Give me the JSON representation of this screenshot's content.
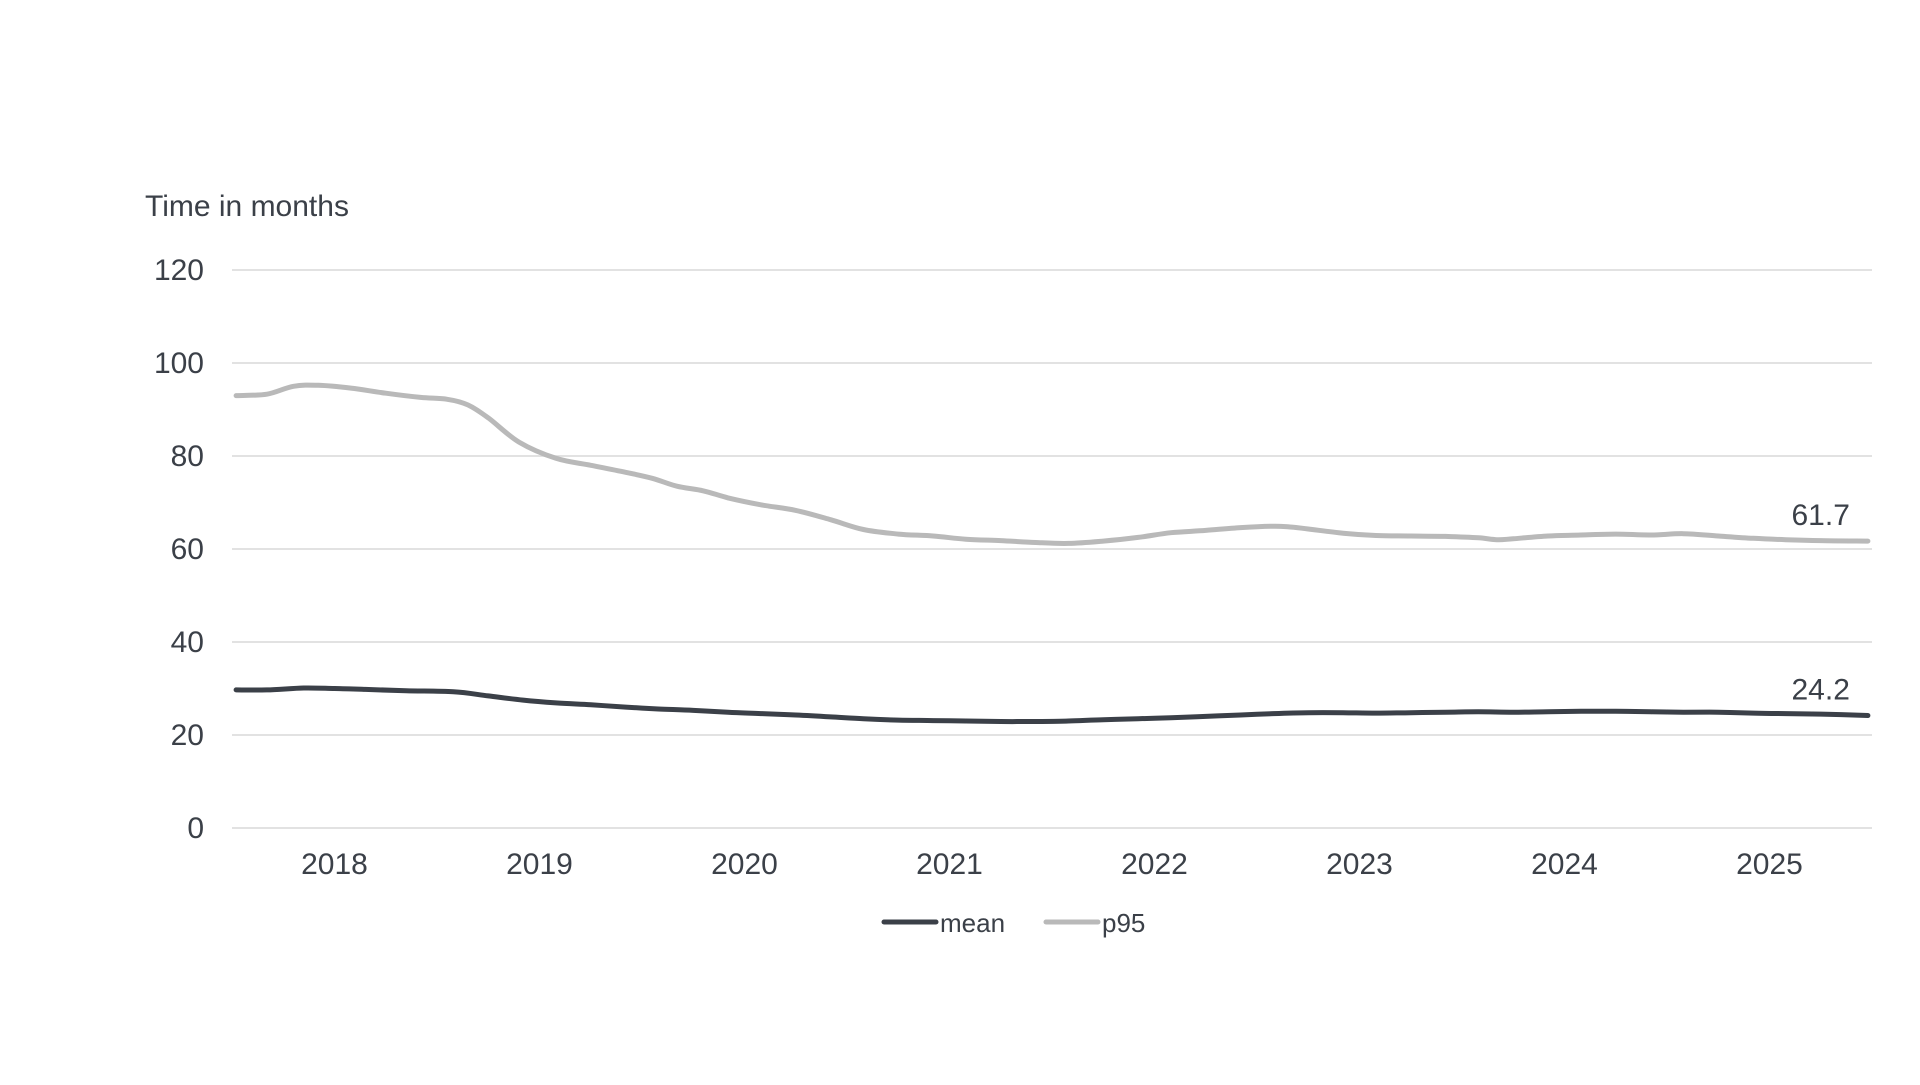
{
  "chart_data": {
    "type": "line",
    "title": "",
    "ylabel": "Time in months",
    "xlabel": "",
    "ylim": [
      0,
      120
    ],
    "yticks": [
      0,
      20,
      40,
      60,
      80,
      100,
      120
    ],
    "xlim": [
      2017.5,
      2025.5
    ],
    "xticks": [
      {
        "label": "2018",
        "value": 2018
      },
      {
        "label": "2019",
        "value": 2019
      },
      {
        "label": "2020",
        "value": 2020
      },
      {
        "label": "2021",
        "value": 2021
      },
      {
        "label": "2022",
        "value": 2022
      },
      {
        "label": "2023",
        "value": 2023
      },
      {
        "label": "2024",
        "value": 2024
      },
      {
        "label": "2025",
        "value": 2025
      }
    ],
    "grid": true,
    "legend": "bottom-center",
    "series": [
      {
        "name": "mean",
        "color": "#3b4048",
        "end_label": "24.2",
        "points": [
          [
            2017.52,
            29.7
          ],
          [
            2017.67,
            29.7
          ],
          [
            2017.85,
            30.1
          ],
          [
            2018.0,
            30.0
          ],
          [
            2018.15,
            29.8
          ],
          [
            2018.35,
            29.5
          ],
          [
            2018.58,
            29.3
          ],
          [
            2018.75,
            28.4
          ],
          [
            2018.92,
            27.5
          ],
          [
            2019.08,
            26.9
          ],
          [
            2019.25,
            26.5
          ],
          [
            2019.42,
            26.0
          ],
          [
            2019.58,
            25.6
          ],
          [
            2019.75,
            25.3
          ],
          [
            2019.92,
            24.9
          ],
          [
            2020.08,
            24.6
          ],
          [
            2020.25,
            24.3
          ],
          [
            2020.42,
            23.9
          ],
          [
            2020.58,
            23.5
          ],
          [
            2020.75,
            23.2
          ],
          [
            2020.92,
            23.1
          ],
          [
            2021.08,
            23.0
          ],
          [
            2021.25,
            22.9
          ],
          [
            2021.42,
            22.9
          ],
          [
            2021.58,
            23.0
          ],
          [
            2021.75,
            23.3
          ],
          [
            2021.92,
            23.5
          ],
          [
            2022.08,
            23.7
          ],
          [
            2022.25,
            24.0
          ],
          [
            2022.42,
            24.3
          ],
          [
            2022.58,
            24.6
          ],
          [
            2022.75,
            24.8
          ],
          [
            2022.92,
            24.8
          ],
          [
            2023.08,
            24.7
          ],
          [
            2023.25,
            24.8
          ],
          [
            2023.42,
            24.9
          ],
          [
            2023.58,
            25.0
          ],
          [
            2023.75,
            24.9
          ],
          [
            2023.92,
            25.0
          ],
          [
            2024.08,
            25.1
          ],
          [
            2024.25,
            25.1
          ],
          [
            2024.42,
            25.0
          ],
          [
            2024.58,
            24.9
          ],
          [
            2024.75,
            24.9
          ],
          [
            2024.92,
            24.7
          ],
          [
            2025.08,
            24.6
          ],
          [
            2025.25,
            24.5
          ],
          [
            2025.48,
            24.2
          ]
        ]
      },
      {
        "name": "p95",
        "color": "#b9b9b9",
        "end_label": "61.7",
        "points": [
          [
            2017.52,
            93.0
          ],
          [
            2017.67,
            93.3
          ],
          [
            2017.8,
            95.0
          ],
          [
            2017.92,
            95.2
          ],
          [
            2018.08,
            94.6
          ],
          [
            2018.25,
            93.5
          ],
          [
            2018.42,
            92.6
          ],
          [
            2018.55,
            92.2
          ],
          [
            2018.65,
            91.0
          ],
          [
            2018.75,
            88.2
          ],
          [
            2018.9,
            83.0
          ],
          [
            2019.08,
            79.5
          ],
          [
            2019.25,
            78.0
          ],
          [
            2019.42,
            76.5
          ],
          [
            2019.55,
            75.2
          ],
          [
            2019.67,
            73.5
          ],
          [
            2019.8,
            72.5
          ],
          [
            2019.92,
            71.0
          ],
          [
            2020.08,
            69.5
          ],
          [
            2020.25,
            68.3
          ],
          [
            2020.42,
            66.3
          ],
          [
            2020.58,
            64.2
          ],
          [
            2020.75,
            63.2
          ],
          [
            2020.92,
            62.8
          ],
          [
            2021.08,
            62.1
          ],
          [
            2021.25,
            61.8
          ],
          [
            2021.42,
            61.4
          ],
          [
            2021.58,
            61.2
          ],
          [
            2021.75,
            61.7
          ],
          [
            2021.92,
            62.5
          ],
          [
            2022.08,
            63.5
          ],
          [
            2022.25,
            64.0
          ],
          [
            2022.42,
            64.6
          ],
          [
            2022.58,
            64.9
          ],
          [
            2022.67,
            64.7
          ],
          [
            2022.75,
            64.3
          ],
          [
            2022.92,
            63.4
          ],
          [
            2023.08,
            62.9
          ],
          [
            2023.25,
            62.8
          ],
          [
            2023.42,
            62.7
          ],
          [
            2023.58,
            62.4
          ],
          [
            2023.67,
            62.0
          ],
          [
            2023.75,
            62.2
          ],
          [
            2023.92,
            62.8
          ],
          [
            2024.08,
            63.0
          ],
          [
            2024.25,
            63.2
          ],
          [
            2024.42,
            63.0
          ],
          [
            2024.58,
            63.3
          ],
          [
            2024.75,
            62.8
          ],
          [
            2024.92,
            62.3
          ],
          [
            2025.08,
            62.0
          ],
          [
            2025.25,
            61.8
          ],
          [
            2025.48,
            61.7
          ]
        ]
      }
    ]
  }
}
